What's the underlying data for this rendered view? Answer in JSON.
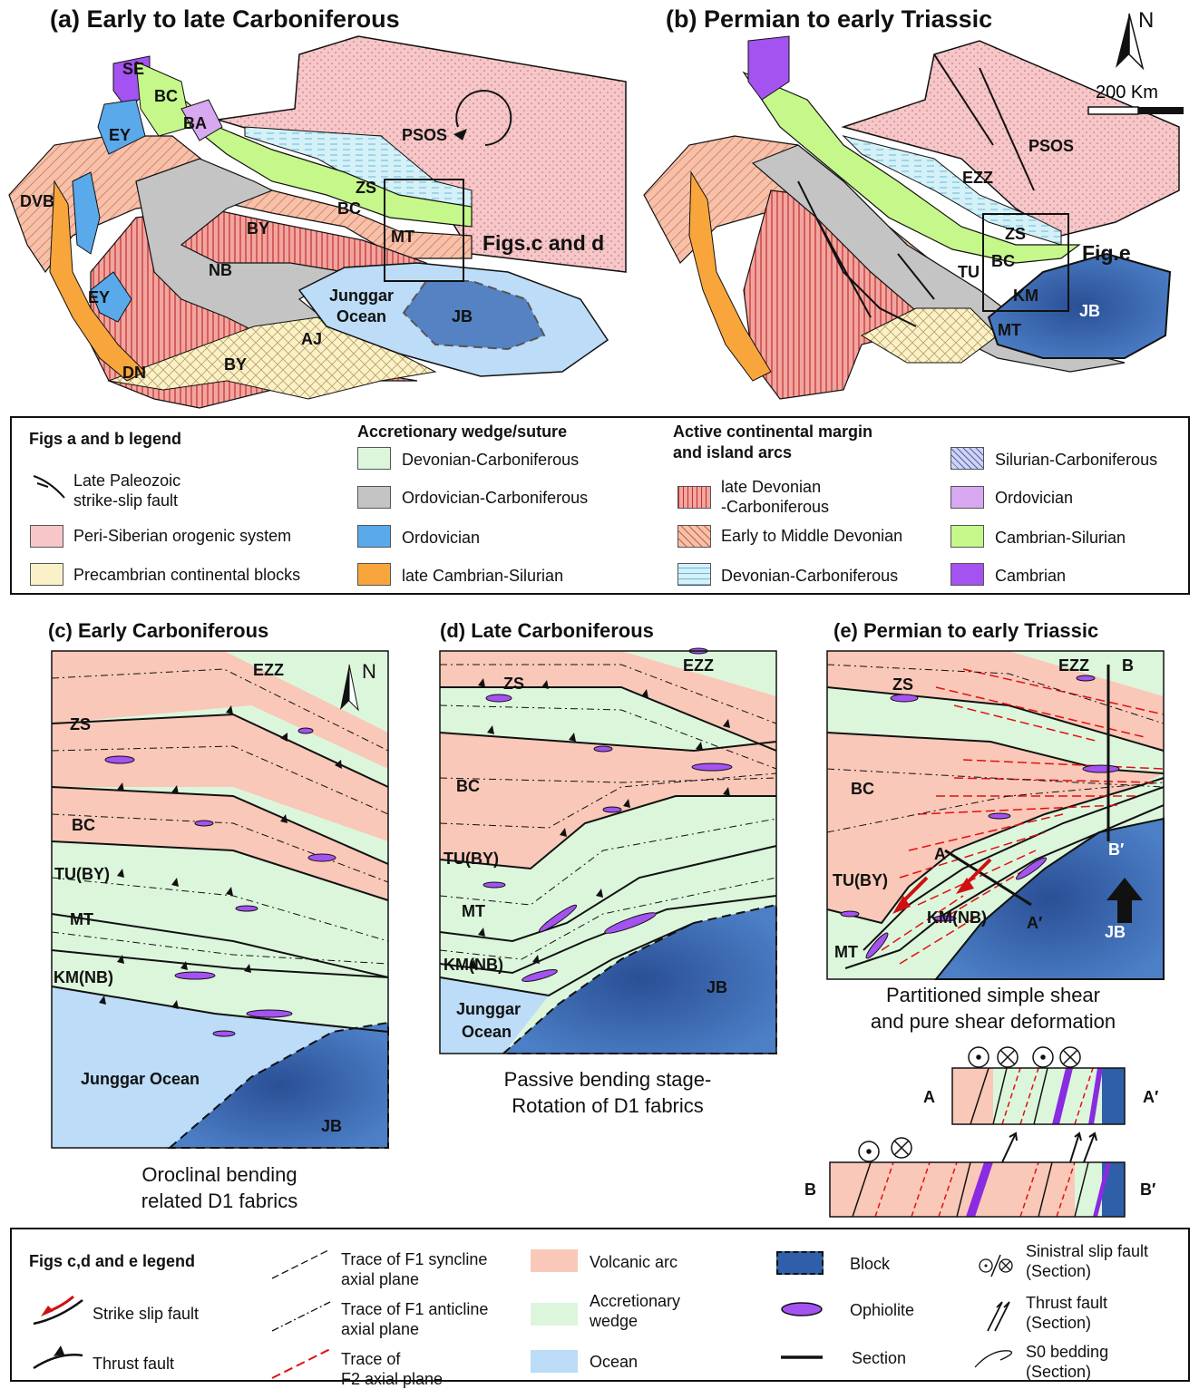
{
  "panels": {
    "a": {
      "title": "(a)  Early to late Carboniferous",
      "labels": {
        "se": "SE",
        "bc1": "BC",
        "ey1": "EY",
        "ba": "BA",
        "psos": "PSOS",
        "dvb": "DVB",
        "zs": "ZS",
        "bc2": "BC",
        "by1": "BY",
        "mt": "MT",
        "nb": "NB",
        "junggar": "Junggar",
        "ocean": "Ocean",
        "jb": "JB",
        "ey2": "EY",
        "aj": "AJ",
        "dn": "DN",
        "by2": "BY"
      },
      "figs_label": "Figs.c and d"
    },
    "b": {
      "title": "(b)  Permian to early Triassic",
      "labels": {
        "psos": "PSOS",
        "ezz": "EZZ",
        "zs": "ZS",
        "bc": "BC",
        "tu": "TU",
        "km": "KM",
        "mt": "MT",
        "jb": "JB"
      },
      "fig_label": "Fig.e",
      "north": "N",
      "scale": "200 Km"
    },
    "c": {
      "title": "(c) Early Carboniferous",
      "labels": {
        "ezz": "EZZ",
        "zs": "ZS",
        "bc": "BC",
        "tu": "TU(BY)",
        "mt": "MT",
        "km": "KM(NB)",
        "ocean": "Junggar Ocean",
        "jb": "JB"
      },
      "north": "N",
      "caption": "Oroclinal bending\nrelated D1 fabrics"
    },
    "d": {
      "title": "(d) Late Carboniferous",
      "labels": {
        "ezz": "EZZ",
        "zs": "ZS",
        "bc": "BC",
        "tu": "TU(BY)",
        "mt": "MT",
        "km": "KM(NB)",
        "junggar": "Junggar",
        "ocean": "Ocean",
        "jb": "JB"
      },
      "caption": "Passive bending stage-\nRotation of D1 fabrics"
    },
    "e": {
      "title": "(e) Permian to early Triassic",
      "labels": {
        "ezz": "EZZ",
        "b": "B",
        "zs": "ZS",
        "bc": "BC",
        "bp": "B′",
        "a": "A",
        "tu": "TU(BY)",
        "ap": "A′",
        "km": "KM(NB)",
        "jb": "JB",
        "mt": "MT"
      },
      "caption": "Partitioned simple shear\nand pure shear deformation",
      "section_a": {
        "left": "A",
        "right": "A′"
      },
      "section_b": {
        "left": "B",
        "right": "B′"
      }
    }
  },
  "legend_ab": {
    "heading": "Figs a and b legend",
    "fault": "Late Paleozoic\nstrike-slip fault",
    "peri": "Peri-Siberian orogenic system",
    "precambrian": "Precambrian continental blocks",
    "accretionary_heading": "Accretionary wedge/suture",
    "acc_devcarb": "Devonian-Carboniferous",
    "acc_ordcarb": "Ordovician-Carboniferous",
    "acc_ord": "Ordovician",
    "acc_cambsil": "late Cambrian-Silurian",
    "active_heading": "Active continental margin\nand island arcs",
    "arc_latedev": "late Devonian\n-Carboniferous",
    "arc_earlydev": "Early to Middle Devonian",
    "arc_devcarb": "Devonian-Carboniferous",
    "arc_silcarb": "Silurian-Carboniferous",
    "arc_ord": "Ordovician",
    "arc_cambsil": "Cambrian-Silurian",
    "arc_camb": "Cambrian"
  },
  "legend_cde": {
    "heading": "Figs c,d and e legend",
    "strike": "Strike slip fault",
    "thrust": "Thrust fault",
    "syncline": "Trace of F1 syncline\naxial plane",
    "anticline": "Trace of F1 anticline\naxial plane",
    "f2": "Trace of\nF2 axial plane",
    "volcanic": "Volcanic arc",
    "accretionary": "Accretionary\nwedge",
    "ocean": "Ocean",
    "block": "Block",
    "ophiolite": "Ophiolite",
    "section": "Section",
    "sinistral": "Sinistral slip fault\n(Section)",
    "thrust_sec": "Thrust fault\n(Section)",
    "bedding": "S0 bedding\n(Section)"
  },
  "colors": {
    "peri": "#f7c6c8",
    "arc": "#f9c8b8",
    "wedge": "#dcf6dc",
    "ocean": "#bcdcf7",
    "block": "#2f5fa8",
    "gray": "#c4c4c4",
    "green": "#c6f78a",
    "blue": "#5aa9ea",
    "orange": "#f8a63c",
    "lilac": "#d8a8f0",
    "purple": "#a452f0",
    "red": "#e0848a"
  }
}
